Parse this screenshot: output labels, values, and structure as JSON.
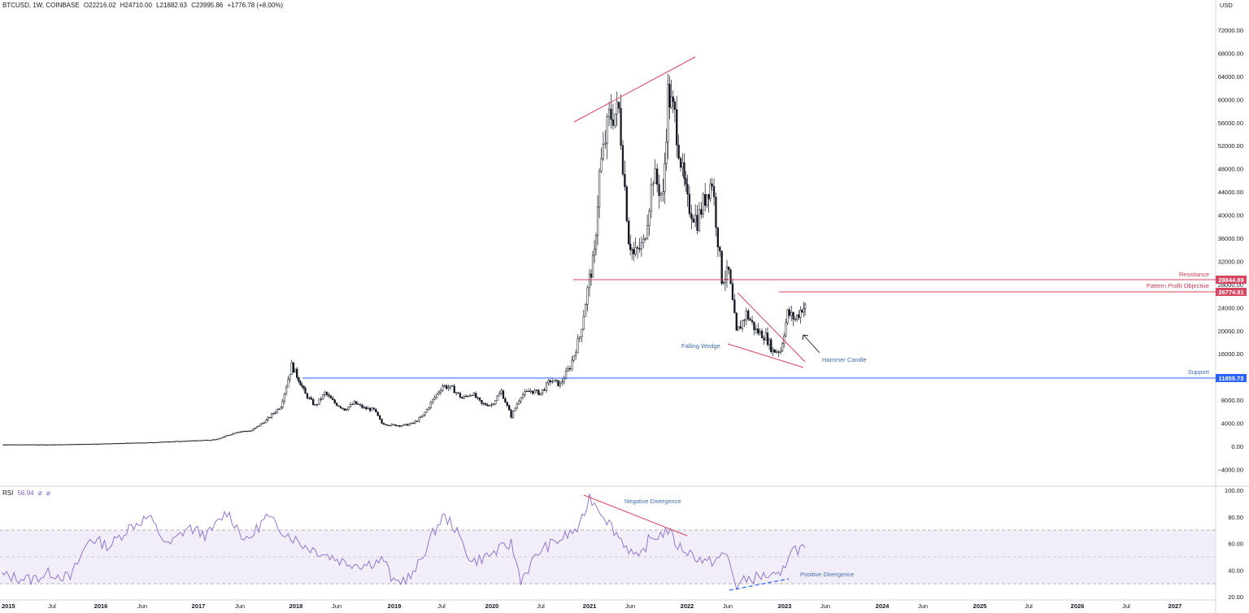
{
  "header": {
    "symbol": "BTCUSD, 1W, COINBASE",
    "open": "O22216.02",
    "high": "H24710.00",
    "low": "L21882.63",
    "close": "C23995.86",
    "change": "+1776.78 (+8.00%)"
  },
  "currency_label": "USD",
  "rsi_header": {
    "label": "RSI",
    "value": "56.94",
    "extra1": "ø",
    "extra2": "ø"
  },
  "colors": {
    "resistance": "#d6465e",
    "support": "#2962ff",
    "rsi_line": "#9575cd",
    "rsi_band": "#ede7f6",
    "annotation_blue": "#3e6eb4",
    "annotation_red": "#c83a53",
    "candle": "#131722"
  },
  "chart_data": [
    {
      "type": "candlestick",
      "title": "BTCUSD, 1W, COINBASE",
      "ylabel": "USD",
      "ylim": [
        -6000,
        75000
      ],
      "x_ticks": [
        "2015",
        "Jul",
        "2016",
        "Jun",
        "2017",
        "Jun",
        "2018",
        "Jun",
        "2019",
        "Jul",
        "2020",
        "Jul",
        "2021",
        "Jun",
        "2022",
        "Jun",
        "2023",
        "Jun",
        "2024",
        "Jun",
        "2025",
        "Jul",
        "2026",
        "Jul",
        "2027"
      ],
      "y_ticks": [
        "72000.00",
        "68000.00",
        "64000.00",
        "60000.00",
        "56000.00",
        "52000.00",
        "48000.00",
        "44000.00",
        "40000.00",
        "36000.00",
        "32000.00",
        "28000.00",
        "24000.00",
        "20000.00",
        "16000.00",
        "12000.00",
        "8000.00",
        "4000.00",
        "0.00",
        "−4000.00"
      ],
      "series": [
        {
          "x": [
            2015.0,
            2015.5,
            2016.0,
            2016.5,
            2017.0,
            2017.2,
            2017.4,
            2017.55,
            2017.7,
            2017.85,
            2017.96,
            2018.05,
            2018.1,
            2018.2,
            2018.3,
            2018.4,
            2018.5,
            2018.6,
            2018.7,
            2018.8,
            2018.88,
            2018.96,
            2019.1,
            2019.2,
            2019.3,
            2019.4,
            2019.5,
            2019.6,
            2019.7,
            2019.8,
            2019.9,
            2020.0,
            2020.1,
            2020.2,
            2020.3,
            2020.4,
            2020.5,
            2020.6,
            2020.7,
            2020.8,
            2020.9,
            2021.0,
            2021.05,
            2021.1,
            2021.2,
            2021.3,
            2021.4,
            2021.45,
            2021.55,
            2021.65,
            2021.75,
            2021.8,
            2021.87,
            2021.95,
            2022.0,
            2022.1,
            2022.2,
            2022.25,
            2022.35,
            2022.42,
            2022.5,
            2022.6,
            2022.7,
            2022.8,
            2022.87,
            2022.95,
            2023.02,
            2023.1,
            2023.17,
            2023.2
          ],
          "close": [
            300,
            280,
            430,
            650,
            1000,
            1200,
            2500,
            2700,
            4500,
            7000,
            14000,
            11000,
            9000,
            7000,
            9200,
            7500,
            6400,
            7500,
            6600,
            6300,
            4000,
            3700,
            3600,
            4000,
            5300,
            8000,
            10500,
            10000,
            8300,
            9200,
            7300,
            7200,
            9500,
            5200,
            8800,
            9600,
            9200,
            11400,
            10700,
            13800,
            19000,
            29000,
            33000,
            47000,
            57000,
            58000,
            36000,
            33000,
            35000,
            47000,
            43000,
            61000,
            57000,
            47000,
            42000,
            39000,
            44000,
            46000,
            29000,
            30000,
            19500,
            23000,
            20000,
            19000,
            16500,
            16600,
            23000,
            22000,
            24000,
            23996
          ],
          "name": "BTCUSD"
        }
      ],
      "levels": [
        {
          "name": "Resistance",
          "value": 28844.89,
          "label": "28844.89"
        },
        {
          "name": "Pattern Profit Objective",
          "value": 26774.91,
          "label": "26774.91"
        },
        {
          "name": "Support",
          "value": 11855.73,
          "label": "11855.73"
        }
      ],
      "annotations": [
        "Resistance",
        "Pattern Profit Objective",
        "Support",
        "Falling Wedge",
        "Hammer Candle"
      ],
      "grid": false
    },
    {
      "type": "line",
      "title": "RSI",
      "ylim": [
        20,
        100
      ],
      "y_ticks": [
        "100.00",
        "80.00",
        "60.00",
        "40.00",
        "20.00"
      ],
      "bands": [
        30,
        50,
        70
      ],
      "series": [
        {
          "x": [
            2015.0,
            2015.3,
            2015.5,
            2015.7,
            2015.9,
            2016.1,
            2016.3,
            2016.5,
            2016.7,
            2016.9,
            2017.1,
            2017.3,
            2017.5,
            2017.7,
            2017.9,
            2018.1,
            2018.3,
            2018.5,
            2018.7,
            2018.9,
            2019.0,
            2019.2,
            2019.4,
            2019.5,
            2019.6,
            2019.8,
            2020.0,
            2020.2,
            2020.3,
            2020.5,
            2020.7,
            2020.9,
            2021.0,
            2021.1,
            2021.3,
            2021.5,
            2021.6,
            2021.8,
            2021.9,
            2022.0,
            2022.2,
            2022.4,
            2022.5,
            2022.6,
            2022.8,
            2022.95,
            2023.05,
            2023.15,
            2023.2
          ],
          "y": [
            36,
            33,
            38,
            34,
            64,
            58,
            72,
            80,
            58,
            72,
            66,
            84,
            61,
            80,
            68,
            58,
            52,
            46,
            44,
            48,
            30,
            36,
            67,
            80,
            75,
            46,
            52,
            60,
            33,
            55,
            63,
            72,
            95,
            86,
            65,
            47,
            62,
            70,
            58,
            54,
            45,
            52,
            28,
            33,
            36,
            34,
            56,
            56,
            57
          ],
          "name": "RSI"
        }
      ],
      "annotations": [
        "Negative Divergence",
        "Positive Divergence"
      ]
    }
  ]
}
